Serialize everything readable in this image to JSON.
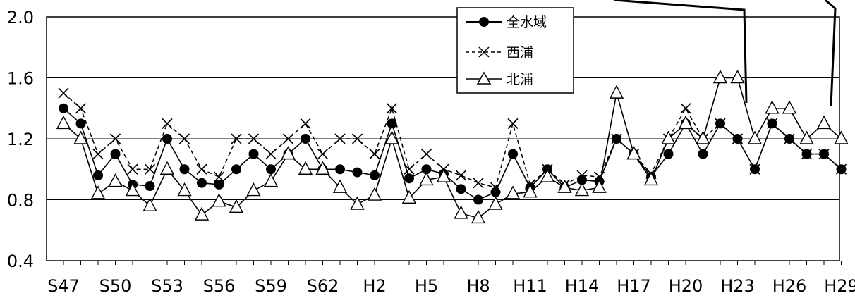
{
  "chart_data": {
    "type": "line",
    "ylim": [
      0.4,
      2.0
    ],
    "y_ticks": [
      "0.4",
      "0.8",
      "1.2",
      "1.6",
      "2.0"
    ],
    "y_tick_values": [
      0.4,
      0.8,
      1.2,
      1.6,
      2.0
    ],
    "x_tick_labels": [
      "S47",
      "S50",
      "S53",
      "S56",
      "S59",
      "S62",
      "H2",
      "H5",
      "H8",
      "H11",
      "H14",
      "H17",
      "H20",
      "H23",
      "H26",
      "H29"
    ],
    "x_count": 46,
    "grid": true,
    "legend_position": "top-right",
    "series": [
      {
        "name": "全水域",
        "marker": "circle-filled",
        "line": "solid",
        "values": [
          1.4,
          1.3,
          0.96,
          1.1,
          0.9,
          0.89,
          1.2,
          1.0,
          0.91,
          0.9,
          1.0,
          1.1,
          1.0,
          1.1,
          1.2,
          1.0,
          1.0,
          0.98,
          0.96,
          1.3,
          0.94,
          1.0,
          0.97,
          0.87,
          0.8,
          0.85,
          1.1,
          0.88,
          1.0,
          0.88,
          0.93,
          0.92,
          1.2,
          1.1,
          0.95,
          1.1,
          1.3,
          1.1,
          1.3,
          1.2,
          1.0,
          1.3,
          1.2,
          1.1,
          1.1,
          1.0
        ]
      },
      {
        "name": "西浦",
        "marker": "x",
        "line": "dashed",
        "values": [
          1.5,
          1.4,
          1.1,
          1.2,
          1.0,
          1.0,
          1.3,
          1.2,
          1.0,
          0.95,
          1.2,
          1.2,
          1.1,
          1.2,
          1.3,
          1.1,
          1.2,
          1.2,
          1.1,
          1.4,
          1.0,
          1.1,
          1.0,
          0.96,
          0.91,
          0.88,
          1.3,
          0.9,
          1.0,
          0.9,
          0.96,
          0.95,
          1.2,
          1.1,
          0.97,
          1.2,
          1.4,
          1.2,
          1.3,
          1.2,
          1.0,
          1.3,
          1.2,
          1.1,
          1.1,
          1.0
        ]
      },
      {
        "name": "北浦",
        "marker": "triangle-open",
        "line": "solid",
        "values": [
          1.3,
          1.2,
          0.84,
          0.92,
          0.86,
          0.76,
          1.0,
          0.86,
          0.7,
          0.79,
          0.75,
          0.86,
          0.92,
          1.1,
          1.0,
          1.0,
          0.88,
          0.77,
          0.83,
          1.2,
          0.81,
          0.93,
          0.95,
          0.71,
          0.68,
          0.77,
          0.84,
          0.85,
          0.95,
          0.88,
          0.86,
          0.88,
          1.5,
          1.1,
          0.93,
          1.2,
          1.3,
          1.2,
          1.6,
          1.6,
          1.2,
          1.4,
          1.4,
          1.2,
          1.3,
          1.2
        ]
      }
    ]
  }
}
